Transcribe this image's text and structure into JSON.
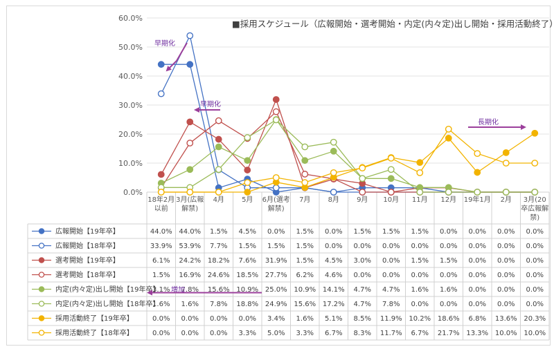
{
  "chart_data": {
    "type": "line",
    "title": "採用スケジュール（広報開始・選考開始・内定(内々定)出し開始・採用活動終了）",
    "title_marker": "■",
    "categories": [
      [
        "18年2月",
        "以前"
      ],
      [
        "3月(広報",
        "解禁)"
      ],
      [
        "4月"
      ],
      [
        "5月"
      ],
      [
        "6月(選考",
        "解禁)"
      ],
      [
        "7月"
      ],
      [
        "8月"
      ],
      [
        "9月"
      ],
      [
        "10月"
      ],
      [
        "11月"
      ],
      [
        "12月"
      ],
      [
        "19年1月"
      ],
      [
        "2月"
      ],
      [
        "3月(20",
        "卒広報解",
        "禁)"
      ]
    ],
    "ylim": [
      0,
      60
    ],
    "yticks": [
      0,
      10,
      20,
      30,
      40,
      50,
      60
    ],
    "ytick_labels": [
      "0.0%",
      "10.0%",
      "20.0%",
      "30.0%",
      "40.0%",
      "50.0%",
      "60.0%"
    ],
    "grid": true,
    "legend": "data-table-below",
    "series": [
      {
        "name": "広報開始【19年卒】",
        "color": "#4472c4",
        "filled": true,
        "values": [
          44.0,
          44.0,
          1.5,
          4.5,
          0.0,
          1.5,
          0.0,
          1.5,
          1.5,
          1.5,
          0.0,
          0.0,
          0.0,
          0.0
        ],
        "labels": [
          "44.0%",
          "44.0%",
          "1.5%",
          "4.5%",
          "0.0%",
          "1.5%",
          "0.0%",
          "1.5%",
          "1.5%",
          "1.5%",
          "0.0%",
          "0.0%",
          "0.0%",
          "0.0%"
        ]
      },
      {
        "name": "広報開始【18年卒】",
        "color": "#4472c4",
        "filled": false,
        "values": [
          33.9,
          53.9,
          7.7,
          1.5,
          1.5,
          1.5,
          0.0,
          0.0,
          0.0,
          0.0,
          0.0,
          0.0,
          0.0,
          0.0
        ],
        "labels": [
          "33.9%",
          "53.9%",
          "7.7%",
          "1.5%",
          "1.5%",
          "1.5%",
          "0.0%",
          "0.0%",
          "0.0%",
          "0.0%",
          "0.0%",
          "0.0%",
          "0.0%",
          "0.0%"
        ]
      },
      {
        "name": "選考開始【19年卒】",
        "color": "#c0504d",
        "filled": true,
        "values": [
          6.1,
          24.2,
          18.2,
          7.6,
          31.9,
          1.5,
          4.5,
          3.0,
          0.0,
          1.5,
          1.5,
          0.0,
          0.0,
          0.0
        ],
        "labels": [
          "6.1%",
          "24.2%",
          "18.2%",
          "7.6%",
          "31.9%",
          "1.5%",
          "4.5%",
          "3.0%",
          "0.0%",
          "1.5%",
          "1.5%",
          "0.0%",
          "0.0%",
          "0.0%"
        ]
      },
      {
        "name": "選考開始【18年卒】",
        "color": "#c0504d",
        "filled": false,
        "values": [
          1.5,
          16.9,
          24.6,
          18.5,
          27.7,
          6.2,
          4.6,
          0.0,
          0.0,
          0.0,
          0.0,
          0.0,
          0.0,
          0.0
        ],
        "labels": [
          "1.5%",
          "16.9%",
          "24.6%",
          "18.5%",
          "27.7%",
          "6.2%",
          "4.6%",
          "0.0%",
          "0.0%",
          "0.0%",
          "0.0%",
          "0.0%",
          "0.0%",
          "0.0%"
        ]
      },
      {
        "name": "内定(内々定)出し開始【19年卒】",
        "color": "#9bbb59",
        "filled": true,
        "values": [
          3.1,
          7.8,
          15.6,
          10.9,
          25.0,
          10.9,
          14.1,
          4.7,
          4.7,
          1.6,
          1.6,
          0.0,
          0.0,
          0.0
        ],
        "labels": [
          "3.1%",
          "7.8%",
          "15.6%",
          "10.9%",
          "25.0%",
          "10.9%",
          "14.1%",
          "4.7%",
          "4.7%",
          "1.6%",
          "1.6%",
          "0.0%",
          "0.0%",
          "0.0%"
        ]
      },
      {
        "name": "内定(内々定)出し開始【18年卒】",
        "color": "#9bbb59",
        "filled": false,
        "values": [
          1.6,
          1.6,
          7.8,
          18.8,
          24.9,
          15.6,
          17.2,
          4.7,
          7.8,
          0.0,
          0.0,
          0.0,
          0.0,
          0.0
        ],
        "labels": [
          "1.6%",
          "1.6%",
          "7.8%",
          "18.8%",
          "24.9%",
          "15.6%",
          "17.2%",
          "4.7%",
          "7.8%",
          "0.0%",
          "0.0%",
          "0.0%",
          "0.0%",
          "0.0%"
        ]
      },
      {
        "name": "採用活動終了【19年卒】",
        "color": "#f2b300",
        "filled": true,
        "values": [
          0.0,
          0.0,
          0.0,
          0.0,
          3.4,
          1.6,
          5.1,
          8.5,
          11.9,
          10.2,
          18.6,
          6.8,
          13.6,
          20.3
        ],
        "labels": [
          "0.0%",
          "0.0%",
          "0.0%",
          "0.0%",
          "3.4%",
          "1.6%",
          "5.1%",
          "8.5%",
          "11.9%",
          "10.2%",
          "18.6%",
          "6.8%",
          "13.6%",
          "20.3%"
        ]
      },
      {
        "name": "採用活動終了【18年卒】",
        "color": "#f2b300",
        "filled": false,
        "values": [
          0.0,
          0.0,
          0.0,
          3.3,
          5.0,
          3.3,
          6.7,
          8.3,
          11.7,
          6.7,
          21.7,
          13.3,
          10.0,
          10.0
        ],
        "labels": [
          "0.0%",
          "0.0%",
          "0.0%",
          "3.3%",
          "5.0%",
          "3.3%",
          "6.7%",
          "8.3%",
          "11.7%",
          "6.7%",
          "21.7%",
          "13.3%",
          "10.0%",
          "10.0%"
        ]
      }
    ],
    "annotations": [
      {
        "text": "早期化",
        "color": "#7030a0",
        "near_category": 0,
        "near_value": 51,
        "arrow": "down-left"
      },
      {
        "text": "早期化",
        "color": "#7030a0",
        "near_category": 2,
        "near_value": 29,
        "arrow": "left"
      },
      {
        "text": "長期化",
        "color": "#7030a0",
        "near_category": 12,
        "near_value": 23,
        "arrow": "right"
      },
      {
        "text": "増加",
        "color": "#7030a0",
        "near_row": 4,
        "arrow": "left"
      }
    ]
  }
}
